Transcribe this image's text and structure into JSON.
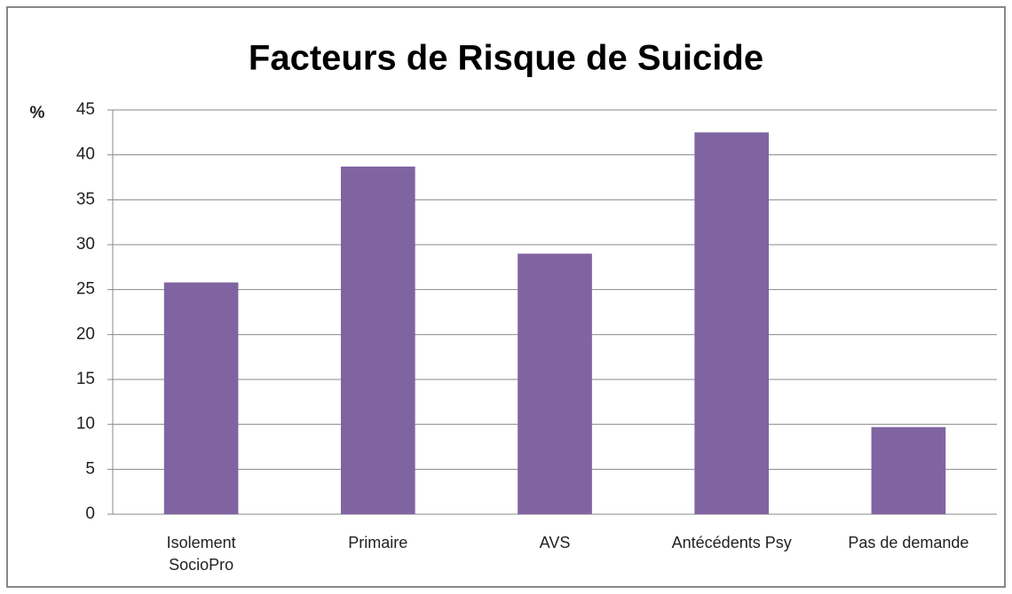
{
  "chart_data": {
    "type": "bar",
    "title": "Facteurs de Risque de Suicide",
    "y_label": "%",
    "categories": [
      "Isolement SocioPro",
      "Primaire",
      "AVS",
      "Antécédents Psy",
      "Pas de demande"
    ],
    "values": [
      25.8,
      38.7,
      29.0,
      42.5,
      9.7
    ],
    "color": "#8064a2",
    "ylim": [
      0,
      45
    ],
    "yticks": [
      0,
      5,
      10,
      15,
      20,
      25,
      30,
      35,
      40,
      45
    ],
    "grid": true
  }
}
